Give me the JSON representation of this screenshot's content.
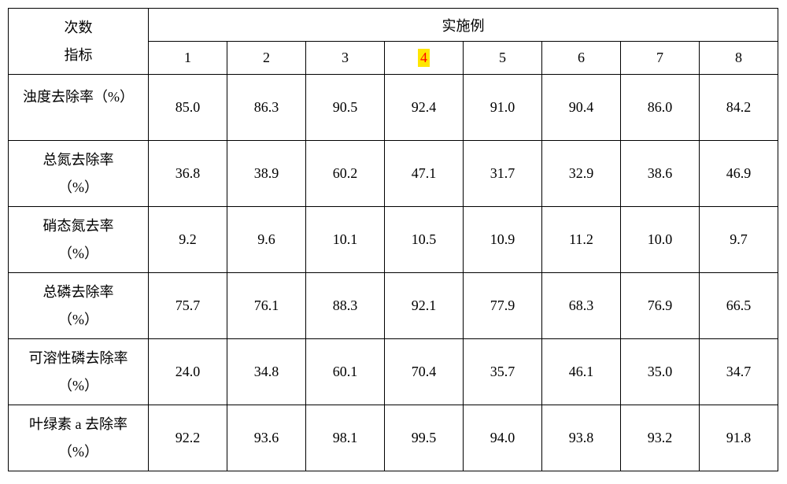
{
  "header": {
    "rowLabelTop": "次数",
    "rowLabelBottom": "指标",
    "groupLabel": "实施例",
    "cols": [
      "1",
      "2",
      "3",
      "4",
      "5",
      "6",
      "7",
      "8"
    ],
    "highlightIndex": 3
  },
  "rows": [
    {
      "id": "turbidity",
      "labelTop": "浊度去除率（%）",
      "labelBottom": "",
      "singleLine": true,
      "values": [
        "85.0",
        "86.3",
        "90.5",
        "92.4",
        "91.0",
        "90.4",
        "86.0",
        "84.2"
      ]
    },
    {
      "id": "total-n",
      "labelTop": "总氮去除率",
      "labelBottom": "（%）",
      "singleLine": false,
      "values": [
        "36.8",
        "38.9",
        "60.2",
        "47.1",
        "31.7",
        "32.9",
        "38.6",
        "46.9"
      ]
    },
    {
      "id": "nitrate-n",
      "labelTop": "硝态氮去率",
      "labelBottom": "（%）",
      "singleLine": false,
      "values": [
        "9.2",
        "9.6",
        "10.1",
        "10.5",
        "10.9",
        "11.2",
        "10.0",
        "9.7"
      ]
    },
    {
      "id": "total-p",
      "labelTop": "总磷去除率",
      "labelBottom": "（%）",
      "singleLine": false,
      "values": [
        "75.7",
        "76.1",
        "88.3",
        "92.1",
        "77.9",
        "68.3",
        "76.9",
        "66.5"
      ]
    },
    {
      "id": "soluble-p",
      "labelTop": "可溶性磷去除率",
      "labelBottom": "（%）",
      "singleLine": false,
      "values": [
        "24.0",
        "34.8",
        "60.1",
        "70.4",
        "35.7",
        "46.1",
        "35.0",
        "34.7"
      ]
    },
    {
      "id": "chlorophyll-a",
      "labelTop": "叶绿素 a 去除率",
      "labelBottom": "（%）",
      "singleLine": false,
      "values": [
        "92.2",
        "93.6",
        "98.1",
        "99.5",
        "94.0",
        "93.8",
        "93.2",
        "91.8"
      ]
    }
  ]
}
